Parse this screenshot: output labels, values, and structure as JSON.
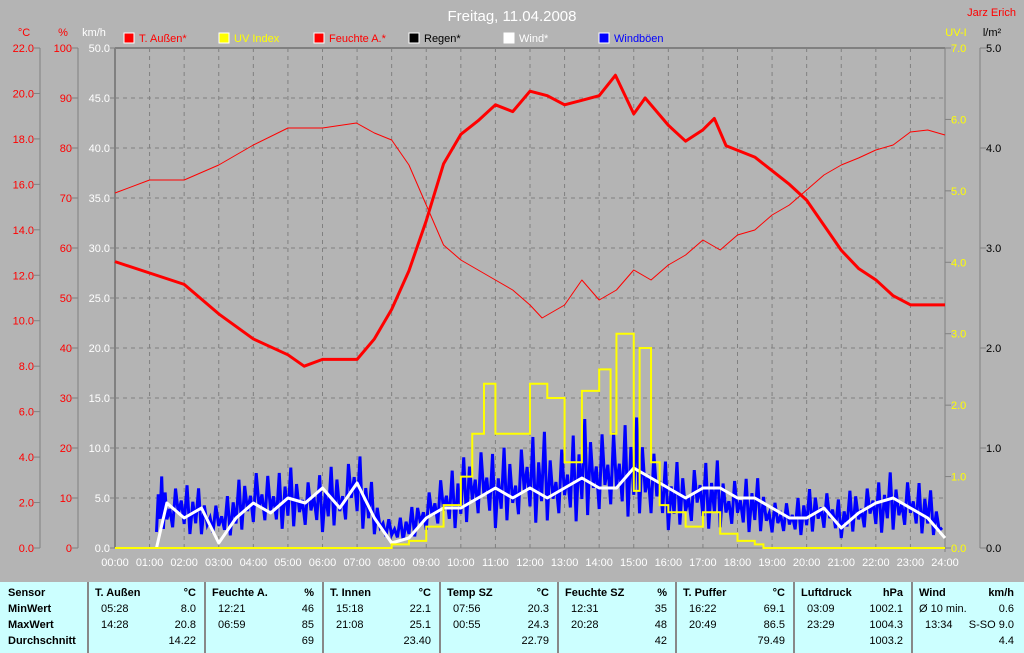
{
  "title": "Freitag, 11.04.2008",
  "author": "Jarz Erich",
  "colors": {
    "temp": "#ff0000",
    "uv": "#ffff00",
    "hum": "#ff0000",
    "rain": "#000000",
    "wind": "#ffffff",
    "gust": "#0000ff"
  },
  "chart_data": {
    "type": "line",
    "title": "Freitag, 11.04.2008",
    "legend": [
      {
        "label": "T. Außen*",
        "color": "#ff0000"
      },
      {
        "label": "UV Index",
        "color": "#ffff00"
      },
      {
        "label": "Feuchte A.*",
        "color": "#ff0000"
      },
      {
        "label": "Regen*",
        "color": "#000000"
      },
      {
        "label": "Wind*",
        "color": "#ffffff"
      },
      {
        "label": "Windböen",
        "color": "#0000ff"
      }
    ],
    "legend_placement": "top",
    "axes": {
      "temp": {
        "unit": "°C",
        "range": [
          0,
          22
        ],
        "ticks": [
          "22.0",
          "20.0",
          "18.0",
          "16.0",
          "14.0",
          "12.0",
          "10.0",
          "8.0",
          "6.0",
          "4.0",
          "2.0",
          "0.0"
        ]
      },
      "hum": {
        "unit": "%",
        "range": [
          0,
          100
        ],
        "ticks": [
          "100",
          "90",
          "80",
          "70",
          "60",
          "50",
          "40",
          "30",
          "20",
          "10",
          "0"
        ]
      },
      "wind": {
        "unit": "km/h",
        "range": [
          0,
          50
        ],
        "ticks": [
          "50.0",
          "45.0",
          "40.0",
          "35.0",
          "30.0",
          "25.0",
          "20.0",
          "15.0",
          "10.0",
          "5.0",
          "0.0"
        ]
      },
      "uv": {
        "unit": "UV-I",
        "range": [
          0,
          7
        ],
        "ticks": [
          "7.0",
          "6.0",
          "5.0",
          "4.0",
          "3.0",
          "2.0",
          "1.0",
          "0.0"
        ]
      },
      "rain": {
        "unit": "l/m²",
        "range": [
          0,
          5
        ],
        "ticks": [
          "5.0",
          "4.0",
          "3.0",
          "2.0",
          "1.0",
          "0.0"
        ]
      }
    },
    "x_ticks": [
      "00:00",
      "01:00",
      "02:00",
      "03:00",
      "04:00",
      "05:00",
      "06:00",
      "07:00",
      "08:00",
      "09:00",
      "10:00",
      "11:00",
      "12:00",
      "13:00",
      "14:00",
      "15:00",
      "16:00",
      "17:00",
      "18:00",
      "19:00",
      "20:00",
      "21:00",
      "22:00",
      "23:00",
      "24:00"
    ],
    "grid": true,
    "series": [
      {
        "name": "T. Außen",
        "axis": "temp",
        "x": [
          0,
          1,
          2,
          3,
          4,
          5,
          5.47,
          6,
          7,
          7.5,
          8,
          8.5,
          9,
          9.5,
          10,
          10.5,
          11,
          11.5,
          12,
          12.5,
          13,
          13.5,
          14,
          14.47,
          15,
          15.33,
          16,
          16.5,
          17,
          17.33,
          17.67,
          18,
          18.5,
          19,
          19.5,
          20,
          20.5,
          21,
          21.5,
          22,
          22.5,
          23,
          23.5,
          24
        ],
        "values": [
          12.6,
          12.1,
          11.6,
          10.3,
          9.2,
          8.5,
          8.0,
          8.3,
          8.3,
          9.2,
          10.5,
          12.2,
          14.4,
          16.9,
          18.2,
          18.8,
          19.5,
          19.2,
          20.1,
          19.9,
          19.5,
          19.7,
          19.9,
          20.8,
          19.1,
          19.8,
          18.6,
          17.9,
          18.4,
          18.9,
          17.7,
          17.5,
          17.2,
          16.6,
          16.0,
          15.3,
          14.2,
          13.1,
          12.3,
          11.8,
          11.1,
          10.7,
          10.7,
          10.7
        ]
      },
      {
        "name": "Feuchte A.",
        "axis": "hum",
        "x": [
          0,
          1,
          2,
          3,
          4,
          5,
          6,
          6.98,
          7.5,
          8,
          8.5,
          9,
          9.5,
          10,
          10.5,
          11,
          11.5,
          12,
          12.35,
          13,
          13.5,
          14,
          14.5,
          15,
          15.5,
          16,
          16.5,
          17,
          17.5,
          18,
          18.5,
          19,
          19.5,
          20,
          20.5,
          21,
          21.5,
          22,
          22.5,
          23,
          23.5,
          24
        ],
        "values": [
          71,
          73.6,
          73.6,
          76.6,
          80.6,
          84,
          84,
          85,
          83,
          81.6,
          76.6,
          68.6,
          60.6,
          57.6,
          55.6,
          53.6,
          51.6,
          48.6,
          46,
          48.6,
          53.6,
          49.6,
          51.6,
          55.6,
          53.6,
          56.6,
          58.6,
          61.6,
          59.6,
          62.6,
          63.6,
          66.6,
          68.6,
          71.6,
          74.6,
          76.6,
          78,
          79.6,
          80.6,
          83.2,
          83.6,
          82.6
        ]
      },
      {
        "name": "UV Index",
        "axis": "uv",
        "x": [
          0,
          8,
          8.5,
          9,
          9.5,
          10,
          10.33,
          10.67,
          11,
          11.5,
          12,
          12.5,
          13,
          13.5,
          14,
          14.33,
          14.5,
          15,
          15.17,
          15.5,
          15.75,
          16,
          16.5,
          17,
          17.5,
          18,
          18.5,
          18.75,
          24
        ],
        "values": [
          0,
          0.05,
          0.1,
          0.3,
          0.6,
          1.0,
          1.6,
          2.3,
          1.6,
          1.6,
          2.3,
          2.1,
          1.2,
          2.2,
          2.5,
          1.6,
          3.0,
          0.8,
          2.8,
          1.2,
          0.6,
          0.5,
          0.3,
          0.5,
          0.2,
          0.1,
          0.05,
          0,
          0
        ]
      },
      {
        "name": "Wind",
        "axis": "wind",
        "x": [
          1.2,
          1.5,
          2,
          2.5,
          3,
          3.5,
          4,
          4.5,
          5,
          5.5,
          6,
          6.5,
          7,
          7.5,
          8,
          8.5,
          9,
          9.5,
          10,
          10.5,
          11,
          11.5,
          12,
          12.5,
          13,
          13.5,
          14,
          14.5,
          15,
          15.5,
          16,
          16.5,
          17,
          17.5,
          18,
          18.5,
          19,
          19.5,
          20,
          20.5,
          21,
          21.5,
          22,
          22.5,
          23,
          23.5,
          24
        ],
        "values": [
          0,
          4.5,
          3,
          4,
          0.5,
          3,
          4.5,
          3.5,
          5,
          4.5,
          6,
          4,
          6.5,
          3,
          0.5,
          1,
          3,
          4,
          4,
          5,
          6,
          5,
          6,
          5,
          6,
          7,
          6,
          6,
          8,
          7,
          6,
          5,
          6,
          6,
          5,
          5,
          4,
          3,
          3,
          4,
          2,
          3.5,
          4.5,
          5,
          4,
          3,
          1
        ]
      },
      {
        "name": "Windböen",
        "axis": "wind",
        "x": [
          1.2,
          1.5,
          2,
          2.5,
          3,
          3.5,
          4,
          4.5,
          5,
          5.5,
          6,
          6.5,
          7,
          7.5,
          8,
          8.5,
          9,
          9.5,
          10,
          10.5,
          11,
          11.5,
          12,
          12.5,
          13,
          13.5,
          14,
          14.5,
          15,
          15.5,
          16,
          16.5,
          17,
          17.5,
          18,
          18.5,
          19,
          19.5,
          20,
          20.5,
          21,
          21.5,
          22,
          22.5,
          23,
          23.5,
          24
        ],
        "values": [
          8,
          7,
          7.5,
          6,
          5,
          7,
          10,
          8,
          8.5,
          8,
          8,
          9,
          11.5,
          6,
          3,
          4,
          7,
          8,
          9,
          12,
          10,
          11,
          13,
          12,
          12,
          14,
          15,
          13,
          14,
          12,
          9,
          9,
          10,
          9,
          8,
          8,
          6,
          5,
          6,
          7,
          5,
          7,
          7.5,
          8,
          8,
          7,
          3
        ]
      }
    ]
  },
  "table": {
    "row_labels": [
      "Sensor",
      "MinWert",
      "MaxWert",
      "Durchschnitt"
    ],
    "columns": [
      {
        "name": "T. Außen",
        "unit": "°C",
        "min_time": "05:28",
        "min": "8.0",
        "max_time": "14:28",
        "max": "20.8",
        "avg": "14.22"
      },
      {
        "name": "Feuchte A.",
        "unit": "%",
        "min_time": "12:21",
        "min": "46",
        "max_time": "06:59",
        "max": "85",
        "avg": "69"
      },
      {
        "name": "T. Innen",
        "unit": "°C",
        "min_time": "15:18",
        "min": "22.1",
        "max_time": "21:08",
        "max": "25.1",
        "avg": "23.40"
      },
      {
        "name": "Temp SZ",
        "unit": "°C",
        "min_time": "07:56",
        "min": "20.3",
        "max_time": "00:55",
        "max": "24.3",
        "avg": "22.79"
      },
      {
        "name": "Feuchte SZ",
        "unit": "%",
        "min_time": "12:31",
        "min": "35",
        "max_time": "20:28",
        "max": "48",
        "avg": "42"
      },
      {
        "name": "T. Puffer",
        "unit": "°C",
        "min_time": "16:22",
        "min": "69.1",
        "max_time": "20:49",
        "max": "86.5",
        "avg": "79.49"
      },
      {
        "name": "Luftdruck",
        "unit": "hPa",
        "min_time": "03:09",
        "min": "1002.1",
        "max_time": "23:29",
        "max": "1004.3",
        "avg": "1003.2"
      },
      {
        "name": "Wind",
        "unit": "km/h",
        "min_time": "Ø 10 min.",
        "min": "0.6",
        "max_time": "13:34",
        "max": "S-SO 9.0",
        "avg": "4.4"
      }
    ]
  }
}
